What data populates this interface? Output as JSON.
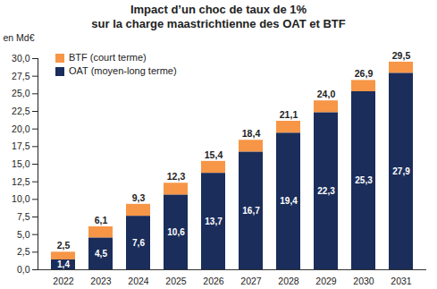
{
  "chart_data": {
    "type": "bar",
    "title": [
      "Impact d’un choc de taux de 1%",
      "sur la charge maastrichtienne des OAT et BTF"
    ],
    "y_label": "en Md€",
    "categories": [
      "2022",
      "2023",
      "2024",
      "2025",
      "2026",
      "2027",
      "2028",
      "2029",
      "2030",
      "2031"
    ],
    "stacked": true,
    "grid": false,
    "legend": "top-left",
    "series": [
      {
        "name": "BTF (court terme)",
        "color": "#f79646",
        "data_labels": false,
        "values": [
          1.1,
          1.6,
          1.7,
          1.7,
          1.7,
          1.7,
          1.7,
          1.7,
          1.6,
          1.6
        ]
      },
      {
        "name": "OAT (moyen-long terme)",
        "color": "#1b2d5a",
        "data_labels": true,
        "values": [
          1.4,
          4.5,
          7.6,
          10.6,
          13.7,
          16.7,
          19.4,
          22.3,
          25.3,
          27.9
        ],
        "value_labels": [
          "1,4",
          "4,5",
          "7,6",
          "10,6",
          "13,7",
          "16,7",
          "19,4",
          "22,3",
          "25,3",
          "27,9"
        ]
      }
    ],
    "totals": [
      2.5,
      6.1,
      9.3,
      12.3,
      15.4,
      18.4,
      21.1,
      24.0,
      26.9,
      29.5
    ],
    "total_labels": [
      "2,5",
      "6,1",
      "9,3",
      "12,3",
      "15,4",
      "18,4",
      "21,1",
      "24,0",
      "26,9",
      "29,5"
    ],
    "ylim": [
      0,
      30
    ],
    "yticks": [
      {
        "value": 0,
        "label": "0,0"
      },
      {
        "value": 2.5,
        "label": "2,5"
      },
      {
        "value": 5,
        "label": "5,0"
      },
      {
        "value": 7.5,
        "label": "7,5"
      },
      {
        "value": 10,
        "label": "10,0"
      },
      {
        "value": 12.5,
        "label": "12,5"
      },
      {
        "value": 15,
        "label": "15,0"
      },
      {
        "value": 17.5,
        "label": "17,5"
      },
      {
        "value": 20,
        "label": "20,0"
      },
      {
        "value": 22.5,
        "label": "22,5"
      },
      {
        "value": 25,
        "label": "25,0"
      },
      {
        "value": 27.5,
        "label": "27,5"
      },
      {
        "value": 30,
        "label": "30,0"
      }
    ]
  }
}
